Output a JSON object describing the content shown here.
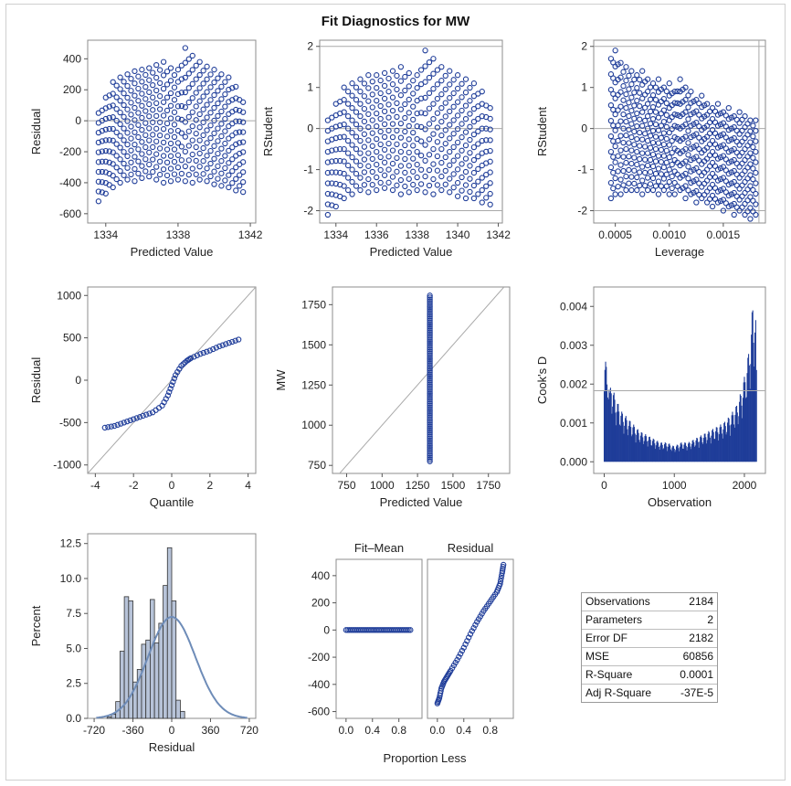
{
  "title": "Fit Diagnostics for MW",
  "colors": {
    "marker": "#1f3d99",
    "fill": "#b7c3d8",
    "ref": "#a9a9a9",
    "curve": "#6e8cb8",
    "frame": "#8c8c8c"
  },
  "chart_data": [
    {
      "type": "scatter",
      "id": "p1",
      "xlabel": "Predicted Value",
      "ylabel": "Residual",
      "xlim": [
        1333,
        1342.3
      ],
      "ylim": [
        -660,
        520
      ],
      "xticks": [
        1334,
        1338,
        1342
      ],
      "yticks": [
        400,
        200,
        0,
        -200,
        -400,
        -600
      ],
      "ref_y": [
        0
      ],
      "x": [
        1333.6,
        1334.0,
        1334.4,
        1334.8,
        1335.2,
        1335.6,
        1336.0,
        1336.4,
        1336.8,
        1337.2,
        1337.6,
        1338.0,
        1338.4,
        1338.8,
        1339.2,
        1339.6,
        1340.0,
        1340.4,
        1340.8,
        1341.2,
        1341.6
      ],
      "y_top": [
        50,
        150,
        250,
        280,
        300,
        320,
        330,
        340,
        360,
        380,
        340,
        330,
        470,
        420,
        380,
        350,
        330,
        300,
        280,
        220,
        120
      ],
      "y_bottom": [
        -520,
        -470,
        -430,
        -400,
        -380,
        -390,
        -370,
        -360,
        -380,
        -400,
        -390,
        -380,
        -390,
        -400,
        -380,
        -390,
        -410,
        -420,
        -430,
        -450,
        -460
      ]
    },
    {
      "type": "scatter",
      "id": "p2",
      "xlabel": "Predicted Value",
      "ylabel": "RStudent",
      "xlim": [
        1333.2,
        1342.2
      ],
      "ylim": [
        -2.3,
        2.15
      ],
      "xticks": [
        1334,
        1336,
        1338,
        1340,
        1342
      ],
      "yticks": [
        2,
        1,
        0,
        -1,
        -2
      ],
      "ref_y": [
        2,
        0,
        -2
      ],
      "x": [
        1333.6,
        1334.0,
        1334.4,
        1334.8,
        1335.2,
        1335.6,
        1336.0,
        1336.4,
        1336.8,
        1337.2,
        1337.6,
        1338.0,
        1338.4,
        1338.8,
        1339.2,
        1339.6,
        1340.0,
        1340.4,
        1340.8,
        1341.2,
        1341.6
      ],
      "y_top": [
        0.2,
        0.6,
        1.0,
        1.1,
        1.2,
        1.3,
        1.3,
        1.35,
        1.4,
        1.5,
        1.35,
        1.3,
        1.9,
        1.7,
        1.5,
        1.4,
        1.3,
        1.2,
        1.1,
        0.9,
        0.5
      ],
      "y_bottom": [
        -2.1,
        -1.9,
        -1.7,
        -1.6,
        -1.5,
        -1.55,
        -1.5,
        -1.45,
        -1.5,
        -1.6,
        -1.55,
        -1.5,
        -1.55,
        -1.6,
        -1.5,
        -1.55,
        -1.65,
        -1.7,
        -1.7,
        -1.8,
        -1.85
      ]
    },
    {
      "type": "scatter",
      "id": "p3",
      "xlabel": "Leverage",
      "ylabel": "RStudent",
      "xlim": [
        0.0003,
        0.00189
      ],
      "ylim": [
        -2.3,
        2.15
      ],
      "xticks": [
        0.0005,
        0.001,
        0.0015
      ],
      "xtick_labels": [
        "0.0005",
        "0.0010",
        "0.0015"
      ],
      "yticks": [
        2,
        1,
        0,
        -1,
        -2
      ],
      "ref_y": [
        2,
        0,
        -2
      ],
      "ref_x": [
        0.00183
      ],
      "x": [
        0.00046,
        0.0005,
        0.00055,
        0.0006,
        0.00065,
        0.0007,
        0.00075,
        0.0008,
        0.00085,
        0.0009,
        0.00095,
        0.001,
        0.00105,
        0.0011,
        0.00115,
        0.0012,
        0.00125,
        0.0013,
        0.00135,
        0.0014,
        0.00145,
        0.0015,
        0.00155,
        0.0016,
        0.00165,
        0.0017,
        0.00175,
        0.0018
      ],
      "y_top": [
        1.7,
        1.9,
        1.6,
        1.5,
        1.4,
        1.3,
        1.4,
        1.2,
        1.1,
        1.2,
        1.0,
        1.1,
        0.9,
        1.2,
        1.0,
        0.9,
        0.7,
        0.8,
        0.6,
        0.5,
        0.6,
        0.4,
        0.5,
        0.3,
        0.4,
        0.3,
        0.2,
        0.2
      ],
      "y_bottom": [
        -1.7,
        -1.6,
        -1.6,
        -1.5,
        -1.5,
        -1.5,
        -1.6,
        -1.5,
        -1.5,
        -1.6,
        -1.5,
        -1.6,
        -1.6,
        -1.5,
        -1.7,
        -1.6,
        -1.8,
        -1.7,
        -1.8,
        -1.9,
        -1.8,
        -2.0,
        -1.9,
        -2.1,
        -2.0,
        -2.1,
        -2.2,
        -2.1
      ]
    },
    {
      "type": "scatter",
      "id": "p4",
      "xlabel": "Quantile",
      "ylabel": "Residual",
      "xlim": [
        -4.4,
        4.4
      ],
      "ylim": [
        -1100,
        1100
      ],
      "xticks": [
        -4,
        -2,
        0,
        2,
        4
      ],
      "yticks": [
        1000,
        500,
        0,
        -500,
        -1000
      ],
      "qq": [
        [
          -3.5,
          -560
        ],
        [
          -3.0,
          -540
        ],
        [
          -2.5,
          -500
        ],
        [
          -2.0,
          -460
        ],
        [
          -1.5,
          -420
        ],
        [
          -1.0,
          -380
        ],
        [
          -0.5,
          -300
        ],
        [
          -0.2,
          -180
        ],
        [
          0.0,
          -60
        ],
        [
          0.2,
          60
        ],
        [
          0.5,
          170
        ],
        [
          0.8,
          230
        ],
        [
          1.0,
          260
        ],
        [
          1.5,
          310
        ],
        [
          2.0,
          350
        ],
        [
          2.5,
          400
        ],
        [
          3.0,
          440
        ],
        [
          3.5,
          480
        ]
      ]
    },
    {
      "type": "scatter",
      "id": "p5",
      "xlabel": "Predicted Value",
      "ylabel": "MW",
      "xlim": [
        650,
        1900
      ],
      "ylim": [
        700,
        1860
      ],
      "xticks": [
        750,
        1000,
        1250,
        1500,
        1750
      ],
      "yticks": [
        1750,
        1500,
        1250,
        1000,
        750
      ],
      "x_const": 1337,
      "y_range": [
        775,
        1810
      ]
    },
    {
      "type": "bar",
      "id": "p6",
      "xlabel": "Observation",
      "ylabel": "Cook's D",
      "xlim": [
        -150,
        2300
      ],
      "ylim": [
        -0.0003,
        0.0045
      ],
      "xticks": [
        0,
        1000,
        2000
      ],
      "yticks": [
        0.004,
        0.003,
        0.002,
        0.001,
        0.0
      ],
      "ytick_labels": [
        "0.004",
        "0.003",
        "0.002",
        "0.001",
        "0.000"
      ],
      "ref_y": [
        0.00183
      ],
      "x": [
        0,
        20,
        40,
        60,
        80,
        100,
        150,
        200,
        250,
        300,
        400,
        500,
        600,
        700,
        800,
        900,
        1000,
        1100,
        1200,
        1300,
        1400,
        1500,
        1600,
        1700,
        1800,
        1900,
        1950,
        2000,
        2050,
        2100,
        2120,
        2150,
        2184
      ],
      "values": [
        0.0033,
        0.0027,
        0.0022,
        0.0025,
        0.0018,
        0.0021,
        0.0017,
        0.0015,
        0.0013,
        0.0012,
        0.001,
        0.0008,
        0.0007,
        0.0006,
        0.0005,
        0.0005,
        0.0004,
        0.0005,
        0.0005,
        0.0006,
        0.0007,
        0.0008,
        0.0009,
        0.001,
        0.0012,
        0.0015,
        0.0018,
        0.0022,
        0.0027,
        0.0035,
        0.0042,
        0.004,
        0.003
      ]
    },
    {
      "type": "histogram",
      "id": "p7",
      "xlabel": "Residual",
      "ylabel": "Percent",
      "xlim": [
        -780,
        780
      ],
      "ylim": [
        0,
        13.2
      ],
      "xticks": [
        -720,
        -360,
        0,
        360,
        720
      ],
      "yticks": [
        0.0,
        2.5,
        5.0,
        7.5,
        10.0,
        12.5
      ],
      "ytick_labels": [
        "0.0",
        "2.5",
        "5.0",
        "7.5",
        "10.0",
        "12.5"
      ],
      "bin_start": -600,
      "bin_width": 40,
      "values": [
        0.1,
        0.3,
        1.2,
        4.8,
        8.7,
        8.4,
        2.6,
        3.5,
        5.3,
        5.6,
        8.5,
        5.4,
        6.8,
        9.5,
        12.2,
        8.4,
        1.3,
        0.5
      ],
      "normal": {
        "mean": 0,
        "sd": 220
      }
    },
    {
      "type": "scatter",
      "id": "p8a",
      "title": "Fit–Mean",
      "xlabel": "",
      "xlim": [
        -0.15,
        1.15
      ],
      "ylim": [
        -650,
        520
      ],
      "xticks": [
        0.0,
        0.4,
        0.8
      ],
      "xtick_labels": [
        "0.0",
        "0.4",
        "0.8"
      ],
      "yticks": [
        400,
        200,
        0,
        -200,
        -400,
        -600
      ],
      "y_const": 0
    },
    {
      "type": "scatter",
      "id": "p8b",
      "title": "Residual",
      "xlim": [
        -0.15,
        1.15
      ],
      "ylim": [
        -650,
        520
      ],
      "xticks": [
        0.0,
        0.4,
        0.8
      ],
      "xtick_labels": [
        "0.0",
        "0.4",
        "0.8"
      ],
      "pts": [
        [
          0,
          -540
        ],
        [
          0.03,
          -500
        ],
        [
          0.06,
          -430
        ],
        [
          0.1,
          -380
        ],
        [
          0.15,
          -340
        ],
        [
          0.2,
          -300
        ],
        [
          0.3,
          -220
        ],
        [
          0.4,
          -130
        ],
        [
          0.5,
          -30
        ],
        [
          0.6,
          60
        ],
        [
          0.7,
          140
        ],
        [
          0.8,
          210
        ],
        [
          0.9,
          280
        ],
        [
          0.95,
          340
        ],
        [
          0.98,
          420
        ],
        [
          1.0,
          480
        ]
      ]
    }
  ],
  "spread_xlabel": "Proportion Less",
  "stats": [
    {
      "label": "Observations",
      "value": "2184"
    },
    {
      "label": "Parameters",
      "value": "2"
    },
    {
      "label": "Error DF",
      "value": "2182"
    },
    {
      "label": "MSE",
      "value": "60856"
    },
    {
      "label": "R-Square",
      "value": "0.0001"
    },
    {
      "label": "Adj R-Square",
      "value": "-37E-5"
    }
  ]
}
